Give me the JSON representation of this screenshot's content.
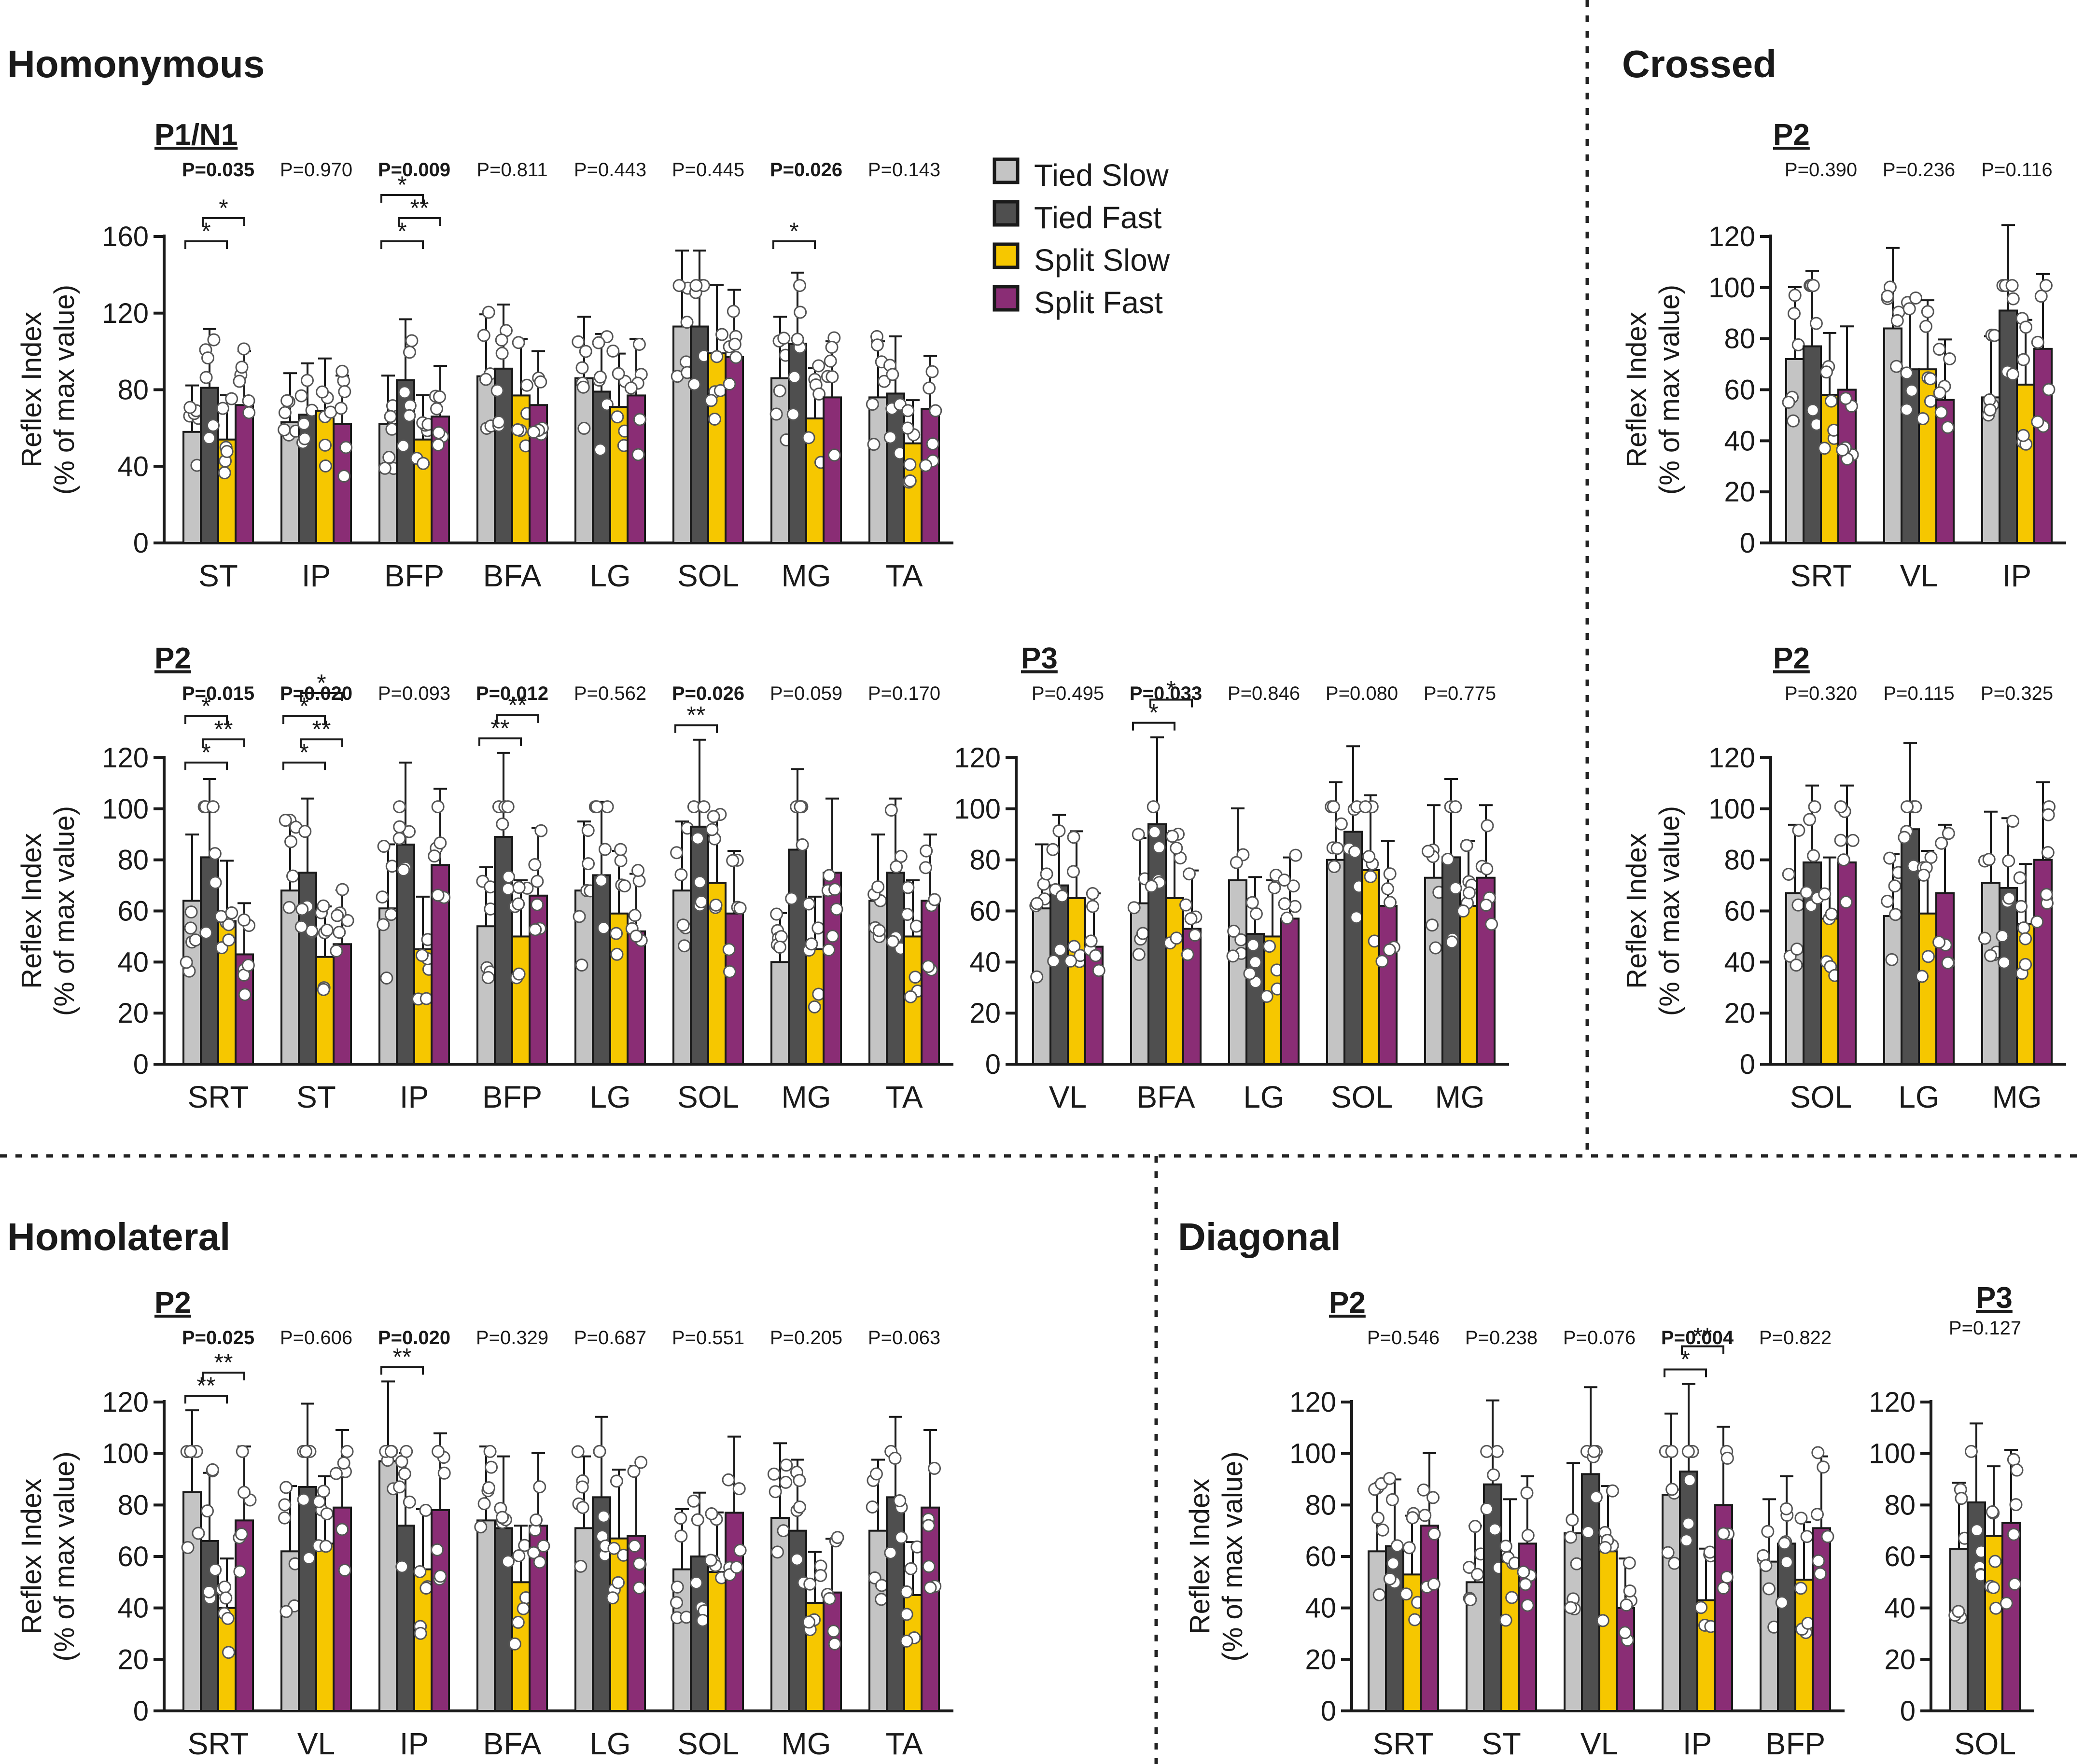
{
  "colors": {
    "tied_slow": "#c4c4c4",
    "tied_fast": "#4f4f4f",
    "split_slow": "#f6c700",
    "split_fast": "#8a2d75"
  },
  "section_titles": {
    "homonymous": "Homonymous",
    "crossed": "Crossed",
    "homolateral": "Homolateral",
    "diagonal": "Diagonal"
  },
  "legend": [
    "Tied Slow",
    "Tied Fast",
    "Split Slow",
    "Split Fast"
  ],
  "chart_data": [
    {
      "id": "homonymous-p1n1",
      "type": "bar",
      "panel_label": "P1/N1",
      "ylabel": "Reflex Index",
      "ylabel2": "(% of max value)",
      "ylim": [
        0,
        160
      ],
      "yticks": [
        0,
        40,
        80,
        120,
        160
      ],
      "groups": [
        {
          "name": "ST",
          "p": "P=0.035",
          "sig": true,
          "values": [
            58,
            81,
            54,
            72
          ],
          "sig_labels": [
            "*",
            "*"
          ]
        },
        {
          "name": "IP",
          "p": "P=0.970",
          "sig": false,
          "values": [
            63,
            67,
            69,
            62
          ],
          "sig_labels": []
        },
        {
          "name": "BFP",
          "p": "P=0.009",
          "sig": true,
          "values": [
            62,
            85,
            54,
            66
          ],
          "sig_labels": [
            "*",
            "**",
            "*"
          ]
        },
        {
          "name": "BFA",
          "p": "P=0.811",
          "sig": false,
          "values": [
            87,
            91,
            77,
            72
          ],
          "sig_labels": []
        },
        {
          "name": "LG",
          "p": "P=0.443",
          "sig": false,
          "values": [
            86,
            79,
            71,
            77
          ],
          "sig_labels": []
        },
        {
          "name": "SOL",
          "p": "P=0.445",
          "sig": false,
          "values": [
            113,
            113,
            99,
            97
          ],
          "sig_labels": []
        },
        {
          "name": "MG",
          "p": "P=0.026",
          "sig": true,
          "values": [
            86,
            104,
            65,
            76
          ],
          "sig_labels": [
            "*"
          ]
        },
        {
          "name": "TA",
          "p": "P=0.143",
          "sig": false,
          "values": [
            76,
            78,
            52,
            70
          ],
          "sig_labels": []
        }
      ]
    },
    {
      "id": "homonymous-p2",
      "type": "bar",
      "panel_label": "P2",
      "ylabel": "Reflex Index",
      "ylabel2": "(% of max value)",
      "ylim": [
        0,
        120
      ],
      "yticks": [
        0,
        20,
        40,
        60,
        80,
        100,
        120
      ],
      "groups": [
        {
          "name": "SRT",
          "p": "P=0.015",
          "sig": true,
          "values": [
            64,
            81,
            56,
            43
          ],
          "sig_labels": [
            "*",
            "**",
            "*"
          ]
        },
        {
          "name": "ST",
          "p": "P=0.020",
          "sig": true,
          "values": [
            68,
            75,
            42,
            47
          ],
          "sig_labels": [
            "*",
            "**",
            "*",
            "*"
          ]
        },
        {
          "name": "IP",
          "p": "P=0.093",
          "sig": false,
          "values": [
            61,
            86,
            45,
            78
          ],
          "sig_labels": []
        },
        {
          "name": "BFP",
          "p": "P=0.012",
          "sig": true,
          "values": [
            54,
            89,
            50,
            66
          ],
          "sig_labels": [
            "**",
            "**"
          ]
        },
        {
          "name": "LG",
          "p": "P=0.562",
          "sig": false,
          "values": [
            68,
            74,
            59,
            52
          ],
          "sig_labels": []
        },
        {
          "name": "SOL",
          "p": "P=0.026",
          "sig": true,
          "values": [
            68,
            93,
            71,
            59
          ],
          "sig_labels": [
            "**"
          ]
        },
        {
          "name": "MG",
          "p": "P=0.059",
          "sig": false,
          "values": [
            40,
            84,
            45,
            75
          ],
          "sig_labels": []
        },
        {
          "name": "TA",
          "p": "P=0.170",
          "sig": false,
          "values": [
            64,
            75,
            50,
            64
          ],
          "sig_labels": []
        }
      ]
    },
    {
      "id": "homonymous-p3",
      "type": "bar",
      "panel_label": "P3",
      "ylabel": "",
      "ylabel2": "",
      "ylim": [
        0,
        120
      ],
      "yticks": [
        0,
        20,
        40,
        60,
        80,
        100,
        120
      ],
      "groups": [
        {
          "name": "VL",
          "p": "P=0.495",
          "sig": false,
          "values": [
            61,
            70,
            65,
            46
          ],
          "sig_labels": []
        },
        {
          "name": "BFA",
          "p": "P=0.033",
          "sig": true,
          "values": [
            63,
            94,
            65,
            53
          ],
          "sig_labels": [
            "*",
            "*"
          ]
        },
        {
          "name": "LG",
          "p": "P=0.846",
          "sig": false,
          "values": [
            72,
            51,
            50,
            57
          ],
          "sig_labels": []
        },
        {
          "name": "SOL",
          "p": "P=0.080",
          "sig": false,
          "values": [
            80,
            91,
            76,
            62
          ],
          "sig_labels": []
        },
        {
          "name": "MG",
          "p": "P=0.775",
          "sig": false,
          "values": [
            73,
            81,
            62,
            73
          ],
          "sig_labels": []
        }
      ]
    },
    {
      "id": "crossed-p2-a",
      "type": "bar",
      "panel_label": "P2",
      "ylabel": "Reflex Index",
      "ylabel2": "(% of max value)",
      "ylim": [
        0,
        120
      ],
      "yticks": [
        0,
        20,
        40,
        60,
        80,
        100,
        120
      ],
      "groups": [
        {
          "name": "SRT",
          "p": "P=0.390",
          "sig": false,
          "values": [
            72,
            77,
            58,
            60
          ],
          "sig_labels": []
        },
        {
          "name": "VL",
          "p": "P=0.236",
          "sig": false,
          "values": [
            84,
            68,
            68,
            56
          ],
          "sig_labels": []
        },
        {
          "name": "IP",
          "p": "P=0.116",
          "sig": false,
          "values": [
            57,
            91,
            62,
            76
          ],
          "sig_labels": []
        }
      ]
    },
    {
      "id": "crossed-p2-b",
      "type": "bar",
      "panel_label": "P2",
      "ylabel": "Reflex Index",
      "ylabel2": "(% of max value)",
      "ylim": [
        0,
        120
      ],
      "yticks": [
        0,
        20,
        40,
        60,
        80,
        100,
        120
      ],
      "groups": [
        {
          "name": "SOL",
          "p": "P=0.320",
          "sig": false,
          "values": [
            67,
            79,
            57,
            79
          ],
          "sig_labels": []
        },
        {
          "name": "LG",
          "p": "P=0.115",
          "sig": false,
          "values": [
            58,
            92,
            59,
            67
          ],
          "sig_labels": []
        },
        {
          "name": "MG",
          "p": "P=0.325",
          "sig": false,
          "values": [
            71,
            69,
            55,
            80
          ],
          "sig_labels": []
        }
      ]
    },
    {
      "id": "homolateral-p2",
      "type": "bar",
      "panel_label": "P2",
      "ylabel": "Reflex Index",
      "ylabel2": "(% of max value)",
      "ylim": [
        0,
        120
      ],
      "yticks": [
        0,
        20,
        40,
        60,
        80,
        100,
        120
      ],
      "groups": [
        {
          "name": "SRT",
          "p": "P=0.025",
          "sig": true,
          "values": [
            85,
            66,
            40,
            74
          ],
          "sig_labels": [
            "**",
            "**"
          ]
        },
        {
          "name": "VL",
          "p": "P=0.606",
          "sig": false,
          "values": [
            62,
            87,
            65,
            79
          ],
          "sig_labels": []
        },
        {
          "name": "IP",
          "p": "P=0.020",
          "sig": true,
          "values": [
            97,
            72,
            55,
            78
          ],
          "sig_labels": [
            "**"
          ]
        },
        {
          "name": "BFA",
          "p": "P=0.329",
          "sig": false,
          "values": [
            74,
            71,
            50,
            72
          ],
          "sig_labels": []
        },
        {
          "name": "LG",
          "p": "P=0.687",
          "sig": false,
          "values": [
            71,
            83,
            67,
            68
          ],
          "sig_labels": []
        },
        {
          "name": "SOL",
          "p": "P=0.551",
          "sig": false,
          "values": [
            55,
            60,
            54,
            77
          ],
          "sig_labels": []
        },
        {
          "name": "MG",
          "p": "P=0.205",
          "sig": false,
          "values": [
            75,
            70,
            42,
            46
          ],
          "sig_labels": []
        },
        {
          "name": "TA",
          "p": "P=0.063",
          "sig": false,
          "values": [
            70,
            83,
            45,
            79
          ],
          "sig_labels": []
        }
      ]
    },
    {
      "id": "diagonal-p2",
      "type": "bar",
      "panel_label": "P2",
      "ylabel": "Reflex Index",
      "ylabel2": "(% of max value)",
      "ylim": [
        0,
        120
      ],
      "yticks": [
        0,
        20,
        40,
        60,
        80,
        100,
        120
      ],
      "groups": [
        {
          "name": "SRT",
          "p": "P=0.546",
          "sig": false,
          "values": [
            62,
            64,
            53,
            72
          ],
          "sig_labels": []
        },
        {
          "name": "ST",
          "p": "P=0.238",
          "sig": false,
          "values": [
            50,
            88,
            58,
            65
          ],
          "sig_labels": []
        },
        {
          "name": "VL",
          "p": "P=0.076",
          "sig": false,
          "values": [
            69,
            92,
            62,
            40
          ],
          "sig_labels": []
        },
        {
          "name": "IP",
          "p": "P=0.004",
          "sig": true,
          "values": [
            84,
            93,
            43,
            80
          ],
          "sig_labels": [
            "*",
            "**"
          ]
        },
        {
          "name": "BFP",
          "p": "P=0.822",
          "sig": false,
          "values": [
            58,
            65,
            51,
            71
          ],
          "sig_labels": []
        }
      ]
    },
    {
      "id": "diagonal-p3",
      "type": "bar",
      "panel_label": "P3",
      "ylabel": "",
      "ylabel2": "",
      "ylim": [
        0,
        120
      ],
      "yticks": [
        0,
        20,
        40,
        60,
        80,
        100,
        120
      ],
      "groups": [
        {
          "name": "SOL",
          "p": "P=0.127",
          "sig": false,
          "values": [
            63,
            81,
            68,
            73
          ],
          "sig_labels": []
        }
      ]
    }
  ]
}
